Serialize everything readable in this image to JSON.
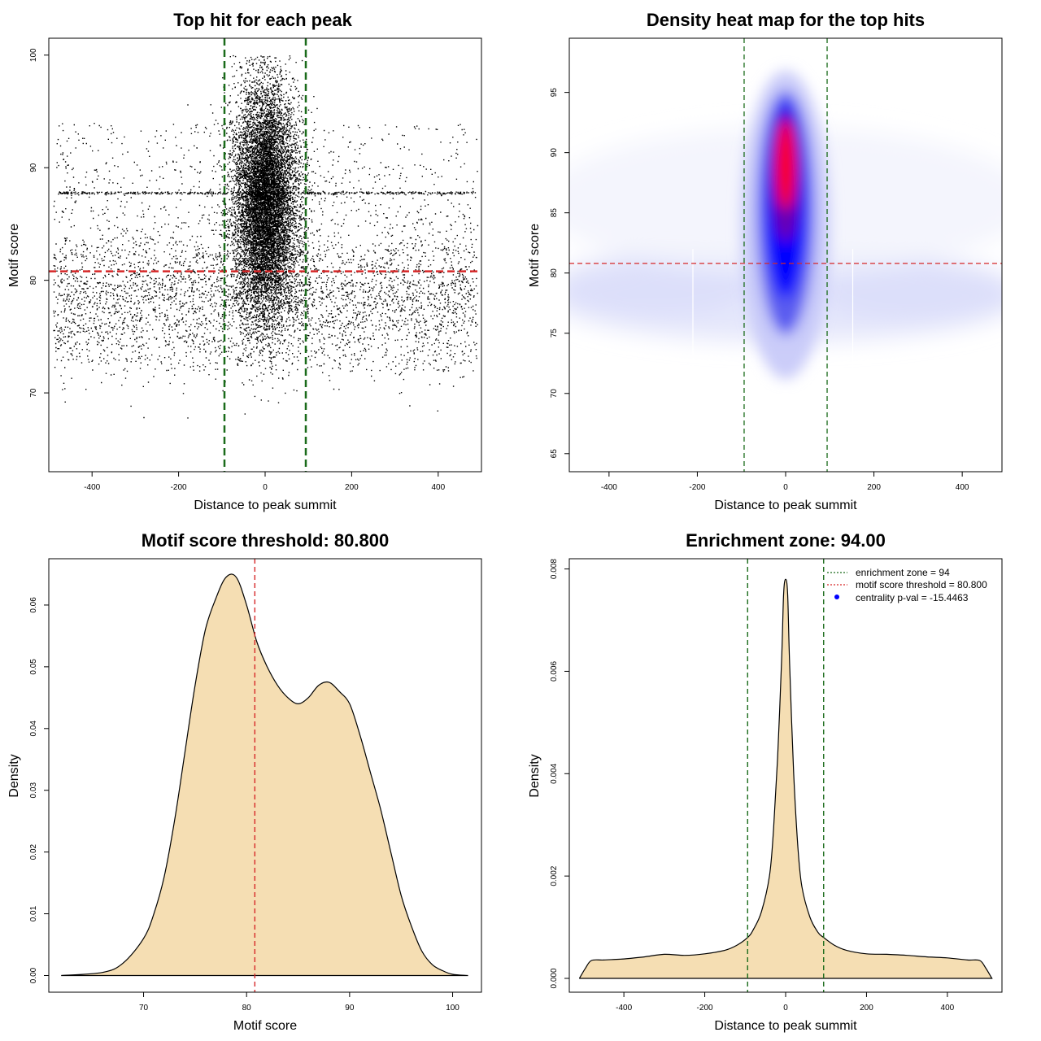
{
  "colors": {
    "scatter_point": "#000000",
    "threshold_line": "#d62728",
    "zone_line": "#1a6b1a",
    "density_fill": "#f5deb3",
    "heat_low": "#ffffff",
    "heat_mid": "#0000ff",
    "heat_high": "#ff0000"
  },
  "chart_data": [
    {
      "id": "scatter",
      "type": "scatter",
      "title": "Top hit for each peak",
      "xlabel": "Distance to peak summit",
      "ylabel": "Motif score",
      "xlim": [
        -500,
        500
      ],
      "ylim": [
        63,
        101.5
      ],
      "xticks": [
        -400,
        -200,
        0,
        200,
        400
      ],
      "yticks": [
        70,
        80,
        90,
        100
      ],
      "hlines": [
        {
          "y": 80.8,
          "role": "threshold"
        }
      ],
      "vlines": [
        {
          "x": -94,
          "role": "zone"
        },
        {
          "x": 94,
          "role": "zone"
        }
      ],
      "points_description": "about 30000 points: background band of scores 68-96 across -490..490, dense central cluster at x≈0 with scores 73-99"
    },
    {
      "id": "heatmap",
      "type": "heatmap",
      "title": "Density heat map for the top hits",
      "xlabel": "Distance to peak summit",
      "ylabel": "Motif score",
      "xlim": [
        -490,
        490
      ],
      "ylim": [
        63.5,
        99.5
      ],
      "xticks": [
        -400,
        -200,
        0,
        200,
        400
      ],
      "yticks": [
        65,
        70,
        75,
        80,
        85,
        90,
        95
      ],
      "hlines": [
        {
          "y": 80.8,
          "role": "threshold"
        }
      ],
      "vlines": [
        {
          "x": -94,
          "role": "zone"
        },
        {
          "x": 94,
          "role": "zone"
        }
      ],
      "peak": {
        "x": 0,
        "y": 89
      }
    },
    {
      "id": "score-density",
      "type": "area",
      "title": "Motif score threshold: 80.800",
      "xlabel": "Motif score",
      "ylabel": "Density",
      "xlim": [
        60.8,
        102.8
      ],
      "ylim": [
        -0.0027,
        0.0675
      ],
      "xticks": [
        70,
        80,
        90,
        100
      ],
      "yticks": [
        0.0,
        0.01,
        0.02,
        0.03,
        0.04,
        0.05,
        0.06
      ],
      "ytick_labels": [
        "0.00",
        "0.01",
        "0.02",
        "0.03",
        "0.04",
        "0.05",
        "0.06"
      ],
      "vlines": [
        {
          "x": 80.8,
          "role": "threshold"
        }
      ],
      "x": [
        62,
        66,
        68,
        70,
        71,
        72,
        73,
        74,
        75,
        76,
        77,
        78,
        79,
        80,
        81,
        82,
        83,
        84,
        85,
        86,
        87,
        88,
        89,
        90,
        91,
        92,
        93,
        94,
        95,
        96,
        97,
        98,
        99,
        100,
        101.5
      ],
      "y": [
        0.0,
        0.0005,
        0.002,
        0.006,
        0.01,
        0.016,
        0.025,
        0.036,
        0.047,
        0.056,
        0.061,
        0.0645,
        0.0645,
        0.06,
        0.054,
        0.05,
        0.047,
        0.045,
        0.044,
        0.045,
        0.047,
        0.0475,
        0.046,
        0.044,
        0.039,
        0.033,
        0.027,
        0.02,
        0.013,
        0.008,
        0.004,
        0.0018,
        0.0008,
        0.0002,
        0.0
      ]
    },
    {
      "id": "distance-density",
      "type": "area",
      "title": "Enrichment zone: 94.00",
      "xlabel": "Distance to peak summit",
      "ylabel": "Density",
      "xlim": [
        -535,
        535
      ],
      "ylim": [
        -0.00027,
        0.0082
      ],
      "xticks": [
        -400,
        -200,
        0,
        200,
        400
      ],
      "yticks": [
        0.0,
        0.002,
        0.004,
        0.006,
        0.008
      ],
      "ytick_labels": [
        "0.000",
        "0.002",
        "0.004",
        "0.006",
        "0.008"
      ],
      "vlines": [
        {
          "x": -94,
          "role": "zone"
        },
        {
          "x": 94,
          "role": "zone"
        }
      ],
      "x": [
        -510,
        -495,
        -480,
        -450,
        -400,
        -350,
        -300,
        -250,
        -200,
        -150,
        -120,
        -94,
        -80,
        -60,
        -40,
        -30,
        -20,
        -10,
        -5,
        0,
        5,
        10,
        20,
        30,
        40,
        60,
        80,
        94,
        120,
        150,
        200,
        250,
        300,
        350,
        400,
        450,
        480,
        495,
        510
      ],
      "y": [
        0.0,
        0.0002,
        0.00035,
        0.00036,
        0.00038,
        0.00042,
        0.00047,
        0.00045,
        0.00048,
        0.00055,
        0.00065,
        0.0008,
        0.00095,
        0.0013,
        0.002,
        0.0029,
        0.0043,
        0.0062,
        0.0075,
        0.0078,
        0.0075,
        0.0061,
        0.004,
        0.0026,
        0.0018,
        0.0012,
        0.0009,
        0.0008,
        0.00065,
        0.00055,
        0.00048,
        0.00047,
        0.00045,
        0.00042,
        0.0004,
        0.00036,
        0.00035,
        0.0002,
        0.0
      ],
      "legend": [
        {
          "label": "enrichment zone = 94",
          "style": "dotted",
          "color": "#1a6b1a"
        },
        {
          "label": "motif score threshold = 80.800",
          "style": "dotted",
          "color": "#d62728"
        },
        {
          "label": "centrality p-val = -15.4463",
          "style": "dot",
          "color": "#0000ff"
        }
      ]
    }
  ]
}
